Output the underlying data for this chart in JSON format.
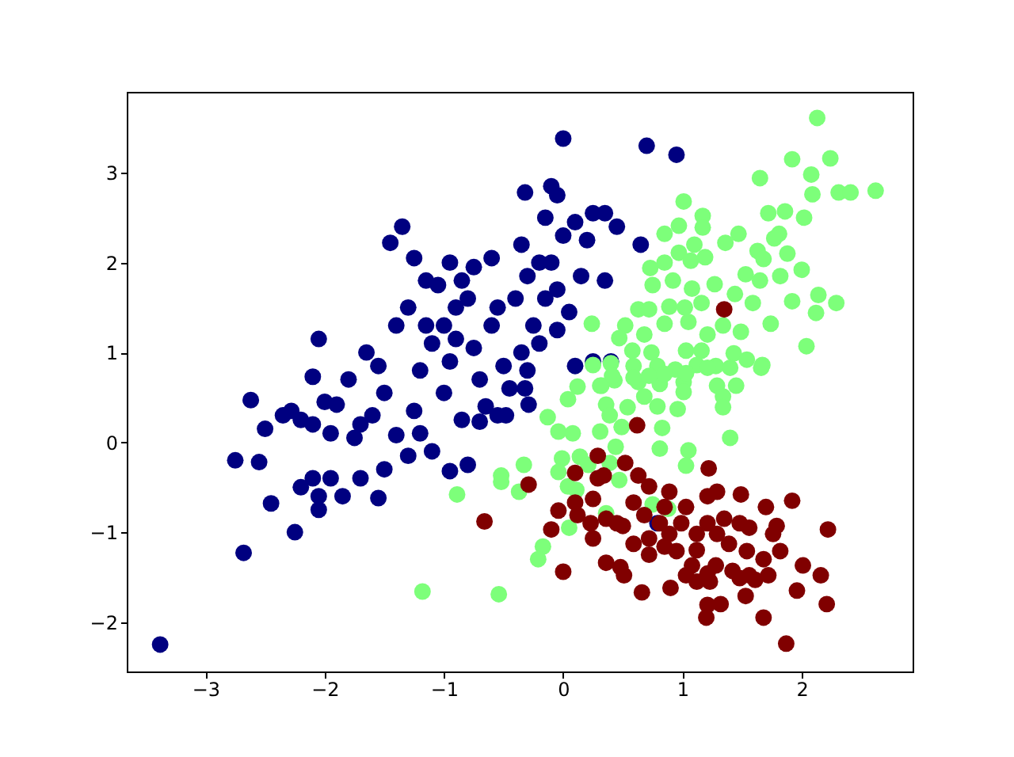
{
  "chart_data": {
    "type": "scatter",
    "xlim": [
      -3.66,
      2.93
    ],
    "ylim": [
      -2.55,
      3.9
    ],
    "xticks": [
      -3,
      -2,
      -1,
      0,
      1,
      2
    ],
    "yticks": [
      -2,
      -1,
      0,
      1,
      2,
      3
    ],
    "grid": false,
    "legend": false,
    "marker": "circle",
    "series": [
      {
        "color": "#000080",
        "x": [
          -3.38,
          -2.68,
          -2.75,
          -2.62,
          -2.55,
          -2.45,
          -2.5,
          -2.35,
          -2.28,
          -2.2,
          -2.1,
          -2.2,
          -2.25,
          -2.1,
          -2.05,
          -2.05,
          -1.95,
          -1.85,
          -1.95,
          -2.0,
          -1.9,
          -1.75,
          -1.7,
          -1.55,
          -1.5,
          -1.6,
          -1.4,
          -1.3,
          -1.2,
          -1.1,
          -0.95,
          -0.85,
          -0.8,
          -0.55,
          -2.1,
          -2.05,
          -1.8,
          -1.55,
          -1.5,
          -1.45,
          -1.35,
          -1.25,
          -1.15,
          -1.4,
          -1.3,
          -1.2,
          -1.1,
          -1.0,
          -0.95,
          -0.9,
          -0.8,
          -0.75,
          -0.7,
          -0.6,
          -0.5,
          -0.45,
          -0.4,
          -0.35,
          -0.3,
          -0.25,
          -0.2,
          -0.15,
          -0.1,
          -0.05,
          0.0,
          -0.05,
          -0.1,
          0.0,
          -0.32,
          -0.15,
          0.1,
          0.2,
          0.25,
          0.35,
          0.45,
          0.15,
          0.35,
          0.05,
          -0.05,
          0.25,
          0.4,
          -0.3,
          0.1,
          -0.6,
          -0.75,
          -0.95,
          -1.05,
          -0.85,
          0.7,
          0.95,
          0.65,
          0.79,
          -1.65,
          -1.7,
          -0.55,
          -0.65,
          -1.0,
          -1.25,
          -0.35,
          -0.9,
          -1.15,
          -0.2,
          -0.32,
          -0.29,
          -0.48,
          -0.7
        ],
        "values": [
          -2.25,
          -1.23,
          -0.2,
          0.47,
          -0.22,
          -0.68,
          0.15,
          0.3,
          0.35,
          0.25,
          0.2,
          -0.5,
          -1.0,
          -0.4,
          -0.6,
          -0.75,
          -0.4,
          -0.6,
          0.1,
          0.45,
          0.42,
          0.05,
          -0.4,
          -0.62,
          -0.3,
          0.3,
          0.08,
          -0.15,
          0.1,
          -0.1,
          -0.32,
          0.25,
          -0.25,
          0.3,
          0.73,
          1.15,
          0.7,
          0.85,
          0.55,
          2.22,
          2.4,
          2.05,
          1.8,
          1.3,
          1.5,
          0.8,
          1.1,
          1.3,
          0.9,
          1.5,
          1.6,
          1.05,
          0.7,
          1.3,
          0.85,
          0.6,
          1.6,
          2.2,
          1.85,
          1.3,
          1.1,
          1.6,
          2.0,
          1.7,
          2.3,
          2.75,
          2.85,
          3.38,
          2.78,
          2.5,
          2.45,
          2.25,
          2.55,
          2.55,
          2.4,
          1.85,
          1.8,
          1.45,
          1.25,
          0.9,
          0.9,
          0.8,
          0.85,
          2.05,
          1.95,
          2.0,
          1.75,
          1.8,
          3.3,
          3.2,
          2.2,
          -0.9,
          1.0,
          0.2,
          1.5,
          0.4,
          0.55,
          0.35,
          1.0,
          1.15,
          1.3,
          2.0,
          0.6,
          0.42,
          0.3,
          0.23
        ]
      },
      {
        "color": "#7dff7a",
        "x": [
          2.13,
          1.92,
          2.24,
          1.65,
          2.08,
          2.09,
          2.31,
          2.41,
          2.62,
          1.01,
          1.72,
          1.86,
          2.02,
          1.17,
          1.17,
          0.97,
          0.85,
          1.47,
          1.36,
          1.81,
          1.77,
          1.1,
          0.97,
          1.19,
          1.07,
          0.85,
          1.63,
          1.68,
          1.88,
          2.0,
          1.82,
          1.53,
          1.65,
          0.73,
          0.75,
          0.92,
          1.08,
          1.27,
          1.44,
          2.14,
          1.92,
          2.29,
          2.12,
          1.59,
          1.74,
          2.04,
          0.63,
          0.72,
          0.89,
          1.02,
          1.16,
          0.24,
          0.52,
          0.68,
          0.85,
          1.05,
          1.21,
          1.34,
          1.49,
          0.47,
          0.58,
          0.74,
          1.03,
          1.16,
          1.43,
          1.54,
          1.67,
          0.25,
          0.4,
          0.59,
          0.79,
          0.94,
          1.12,
          1.28,
          0.12,
          0.32,
          0.43,
          0.63,
          0.81,
          1.01,
          1.29,
          1.45,
          0.41,
          0.59,
          0.72,
          0.85,
          1.03,
          1.21,
          1.4,
          1.66,
          0.04,
          0.31,
          0.36,
          0.54,
          0.68,
          0.79,
          0.96,
          1.01,
          1.34,
          1.34,
          -0.13,
          -0.04,
          0.08,
          0.31,
          0.39,
          0.49,
          0.83,
          0.81,
          0.44,
          1.05,
          1.03,
          1.4,
          -0.33,
          -0.01,
          -0.04,
          0.14,
          0.21,
          0.39,
          -0.52,
          -0.52,
          -0.37,
          0.04,
          0.11,
          0.36,
          0.47,
          0.05,
          -0.17,
          -0.21,
          -0.54,
          0.75,
          0.88,
          -0.89,
          -1.18
        ],
        "values": [
          3.61,
          3.15,
          3.16,
          2.94,
          2.98,
          2.76,
          2.78,
          2.78,
          2.8,
          2.68,
          2.55,
          2.57,
          2.5,
          2.52,
          2.39,
          2.41,
          2.32,
          2.32,
          2.22,
          2.32,
          2.27,
          2.2,
          2.11,
          2.06,
          2.02,
          2.0,
          2.13,
          2.04,
          2.1,
          1.92,
          1.85,
          1.87,
          1.8,
          1.94,
          1.75,
          1.8,
          1.71,
          1.76,
          1.65,
          1.64,
          1.57,
          1.55,
          1.44,
          1.55,
          1.32,
          1.07,
          1.48,
          1.48,
          1.51,
          1.5,
          1.55,
          1.32,
          1.3,
          1.2,
          1.32,
          1.34,
          1.2,
          1.3,
          1.23,
          1.16,
          1.02,
          1.0,
          1.02,
          1.02,
          0.99,
          0.92,
          0.86,
          0.86,
          0.88,
          0.85,
          0.85,
          0.81,
          0.86,
          0.85,
          0.62,
          0.63,
          0.69,
          0.67,
          0.65,
          0.67,
          0.63,
          0.63,
          0.74,
          0.72,
          0.74,
          0.76,
          0.77,
          0.83,
          0.83,
          0.83,
          0.48,
          0.63,
          0.42,
          0.39,
          0.51,
          0.4,
          0.37,
          0.56,
          0.51,
          0.39,
          0.28,
          0.12,
          0.1,
          0.12,
          0.3,
          0.17,
          0.16,
          -0.07,
          -0.05,
          -0.09,
          -0.26,
          0.05,
          -0.25,
          -0.18,
          -0.33,
          -0.16,
          -0.25,
          -0.23,
          -0.37,
          -0.44,
          -0.55,
          -0.49,
          -0.53,
          -0.79,
          -0.42,
          -0.95,
          -1.16,
          -1.3,
          -1.69,
          -0.69,
          -0.74,
          -0.58,
          -1.66
        ]
      },
      {
        "color": "#800000",
        "x": [
          0.62,
          0.29,
          0.52,
          0.1,
          0.34,
          -0.29,
          1.22,
          -0.66,
          -0.1,
          0.0,
          -0.04,
          0.12,
          0.25,
          0.25,
          0.36,
          0.48,
          0.51,
          0.66,
          0.9,
          0.63,
          0.72,
          0.89,
          0.59,
          0.68,
          0.5,
          0.59,
          0.72,
          0.85,
          0.99,
          1.03,
          1.12,
          1.08,
          1.21,
          1.23,
          1.28,
          1.21,
          1.32,
          1.2,
          1.21,
          1.29,
          1.49,
          1.35,
          1.48,
          1.56,
          1.39,
          1.54,
          1.42,
          1.48,
          1.56,
          1.53,
          1.68,
          1.7,
          1.92,
          1.79,
          1.76,
          1.82,
          1.68,
          2.01,
          1.72,
          1.61,
          1.96,
          2.16,
          2.22,
          2.21,
          1.87,
          0.81,
          0.89,
          0.85,
          0.72,
          0.95,
          1.12,
          1.29,
          1.21,
          1.03,
          1.12,
          0.36,
          0.45,
          0.29,
          0.1,
          0.23,
          1.35
        ],
        "values": [
          0.19,
          -0.15,
          -0.23,
          -0.34,
          -0.37,
          -0.47,
          -0.29,
          -0.88,
          -0.97,
          -1.44,
          -0.76,
          -0.81,
          -0.63,
          -1.07,
          -1.34,
          -1.39,
          -1.48,
          -1.67,
          -1.62,
          -0.37,
          -0.49,
          -0.55,
          -0.67,
          -0.81,
          -0.93,
          -1.13,
          -1.25,
          -1.16,
          -0.9,
          -0.72,
          -1.02,
          -1.37,
          -1.46,
          -1.55,
          -1.37,
          -1.81,
          -1.8,
          -1.95,
          -0.6,
          -0.55,
          -0.58,
          -0.85,
          -0.9,
          -0.95,
          -1.13,
          -1.21,
          -1.43,
          -1.51,
          -1.48,
          -1.71,
          -1.95,
          -0.72,
          -0.65,
          -0.93,
          -1.02,
          -1.21,
          -1.3,
          -1.37,
          -1.48,
          -1.53,
          -1.65,
          -1.48,
          -0.97,
          -1.8,
          -2.24,
          -0.9,
          -1.02,
          -0.72,
          -1.07,
          -1.21,
          -1.2,
          -1.02,
          -0.9,
          -1.48,
          -1.55,
          -0.85,
          -0.9,
          -0.4,
          -0.67,
          -0.9,
          1.48
        ]
      }
    ]
  }
}
